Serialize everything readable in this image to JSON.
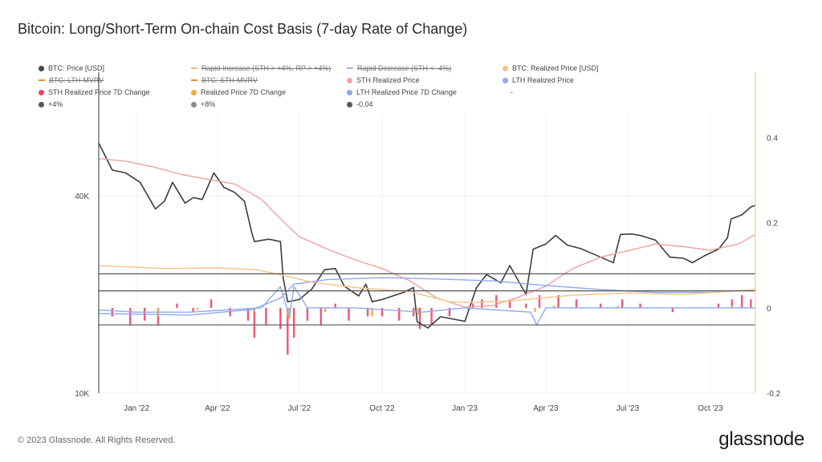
{
  "title": "Bitcoin: Long/Short-Term On-chain Cost Basis (7-day Rate of Change)",
  "footer": "© 2023 Glassnode. All Rights Reserved.",
  "brand": "glassnode",
  "legend": [
    {
      "label": "BTC: Price [USD]",
      "color": "#444444",
      "struck": false
    },
    {
      "label": "Rapid Increase (STH > +4%, RP > +4%)",
      "color": "#f2b38f",
      "struck": true
    },
    {
      "label": "Rapid Decrease (STH < -4%)",
      "color": "#9db8e6",
      "struck": true
    },
    {
      "label": "BTC: Realized Price [USD]",
      "color": "#f5c48a",
      "struck": false
    },
    {
      "label": "BTC: LTH-MVRV",
      "color": "#e88d2c",
      "struck": true
    },
    {
      "label": "BTC: STH-MVRV",
      "color": "#e88d2c",
      "struck": true
    },
    {
      "label": "STH Realized Price",
      "color": "#f2a0a0",
      "struck": false
    },
    {
      "label": "LTH Realized Price",
      "color": "#8fa9ef",
      "struck": false
    },
    {
      "label": "STH Realized Price 7D Change",
      "color": "#ee4466",
      "struck": false
    },
    {
      "label": "Realized Price 7D Change",
      "color": "#f5a742",
      "struck": false
    },
    {
      "label": "LTH Realized Price 7D Change",
      "color": "#8fa9ef",
      "struck": false
    },
    {
      "label": "-",
      "color": "",
      "struck": false
    },
    {
      "label": "+4%",
      "color": "#555555",
      "struck": false
    },
    {
      "label": "+8%",
      "color": "#888888",
      "struck": false
    },
    {
      "label": "-0.04",
      "color": "#555555",
      "struck": false
    }
  ],
  "chart_data": {
    "type": "line",
    "x_tick_labels": [
      "Jan '22",
      "Apr '22",
      "Jul '22",
      "Oct '22",
      "Jan '23",
      "Apr '23",
      "Jul '23",
      "Oct '23"
    ],
    "x_range": [
      "2021-11-20",
      "2023-11-20"
    ],
    "y_left": {
      "scale": "log",
      "range": [
        10000,
        70000
      ],
      "tick_labels": [
        "40K",
        "10K"
      ],
      "tick_values": [
        40000,
        10000
      ]
    },
    "y_right": {
      "scale": "linear",
      "range": [
        -0.2,
        0.45
      ],
      "tick_labels": [
        "0.4",
        "0.2",
        "0",
        "-0.2"
      ],
      "tick_values": [
        0.4,
        0.2,
        0,
        -0.2
      ]
    },
    "reference_lines": [
      {
        "name": "+8%",
        "value": 0.08,
        "color": "#555555"
      },
      {
        "name": "+4%",
        "value": 0.04,
        "color": "#555555"
      },
      {
        "name": "-0.04",
        "value": -0.04,
        "color": "#555555"
      }
    ],
    "series": [
      {
        "name": "BTC: Price [USD]",
        "axis": "left",
        "color": "#3d3d3d",
        "points": [
          [
            "2021-11-20",
            58000
          ],
          [
            "2021-12-05",
            48000
          ],
          [
            "2021-12-20",
            47000
          ],
          [
            "2022-01-05",
            44000
          ],
          [
            "2022-01-22",
            36500
          ],
          [
            "2022-02-01",
            38500
          ],
          [
            "2022-02-10",
            44000
          ],
          [
            "2022-02-24",
            38000
          ],
          [
            "2022-03-05",
            39500
          ],
          [
            "2022-03-15",
            39000
          ],
          [
            "2022-03-28",
            47000
          ],
          [
            "2022-04-08",
            42500
          ],
          [
            "2022-04-20",
            41000
          ],
          [
            "2022-05-01",
            38500
          ],
          [
            "2022-05-09",
            31000
          ],
          [
            "2022-05-12",
            29000
          ],
          [
            "2022-05-28",
            29500
          ],
          [
            "2022-06-10",
            29000
          ],
          [
            "2022-06-13",
            22500
          ],
          [
            "2022-06-18",
            19000
          ],
          [
            "2022-07-01",
            19300
          ],
          [
            "2022-07-15",
            20800
          ],
          [
            "2022-07-29",
            23800
          ],
          [
            "2022-08-10",
            24000
          ],
          [
            "2022-08-20",
            21200
          ],
          [
            "2022-09-05",
            19800
          ],
          [
            "2022-09-13",
            21500
          ],
          [
            "2022-09-20",
            19000
          ],
          [
            "2022-10-01",
            19300
          ],
          [
            "2022-10-25",
            20300
          ],
          [
            "2022-11-05",
            21000
          ],
          [
            "2022-11-09",
            16500
          ],
          [
            "2022-11-21",
            15800
          ],
          [
            "2022-12-05",
            17100
          ],
          [
            "2022-12-20",
            16800
          ],
          [
            "2023-01-01",
            16550
          ],
          [
            "2023-01-14",
            21000
          ],
          [
            "2023-01-25",
            23000
          ],
          [
            "2023-02-10",
            21700
          ],
          [
            "2023-02-20",
            24500
          ],
          [
            "2023-03-10",
            20000
          ],
          [
            "2023-03-18",
            27500
          ],
          [
            "2023-04-01",
            28500
          ],
          [
            "2023-04-12",
            30300
          ],
          [
            "2023-04-25",
            28300
          ],
          [
            "2023-05-10",
            27600
          ],
          [
            "2023-05-25",
            26500
          ],
          [
            "2023-06-15",
            25000
          ],
          [
            "2023-06-23",
            30500
          ],
          [
            "2023-07-05",
            30600
          ],
          [
            "2023-07-15",
            30300
          ],
          [
            "2023-08-01",
            29300
          ],
          [
            "2023-08-17",
            26000
          ],
          [
            "2023-09-01",
            25800
          ],
          [
            "2023-09-11",
            25000
          ],
          [
            "2023-09-25",
            26300
          ],
          [
            "2023-10-10",
            27500
          ],
          [
            "2023-10-20",
            29800
          ],
          [
            "2023-10-24",
            34000
          ],
          [
            "2023-11-05",
            35000
          ],
          [
            "2023-11-15",
            37000
          ],
          [
            "2023-11-20",
            37400
          ]
        ]
      },
      {
        "name": "STH Realized Price",
        "axis": "left",
        "color": "#f2a0a0",
        "points": [
          [
            "2021-11-20",
            52000
          ],
          [
            "2021-12-20",
            51000
          ],
          [
            "2022-01-20",
            49000
          ],
          [
            "2022-02-20",
            46500
          ],
          [
            "2022-03-20",
            45000
          ],
          [
            "2022-04-20",
            43500
          ],
          [
            "2022-05-20",
            39000
          ],
          [
            "2022-06-15",
            33000
          ],
          [
            "2022-07-01",
            30000
          ],
          [
            "2022-08-01",
            27500
          ],
          [
            "2022-09-01",
            25500
          ],
          [
            "2022-10-01",
            24000
          ],
          [
            "2022-11-01",
            22000
          ],
          [
            "2022-12-01",
            19500
          ],
          [
            "2023-01-01",
            18300
          ],
          [
            "2023-02-01",
            18500
          ],
          [
            "2023-03-01",
            19600
          ],
          [
            "2023-04-01",
            21200
          ],
          [
            "2023-05-01",
            24000
          ],
          [
            "2023-06-01",
            26000
          ],
          [
            "2023-07-01",
            27200
          ],
          [
            "2023-08-01",
            28500
          ],
          [
            "2023-09-01",
            28000
          ],
          [
            "2023-10-01",
            27300
          ],
          [
            "2023-11-01",
            28500
          ],
          [
            "2023-11-20",
            30500
          ]
        ]
      },
      {
        "name": "LTH Realized Price",
        "axis": "left",
        "color": "#8fa9ef",
        "points": [
          [
            "2021-11-20",
            17500
          ],
          [
            "2022-03-01",
            17300
          ],
          [
            "2022-05-10",
            18000
          ],
          [
            "2022-06-10",
            19500
          ],
          [
            "2022-06-25",
            21500
          ],
          [
            "2022-08-01",
            22200
          ],
          [
            "2022-10-01",
            22500
          ],
          [
            "2022-12-01",
            22300
          ],
          [
            "2023-02-01",
            22000
          ],
          [
            "2023-04-01",
            21300
          ],
          [
            "2023-06-01",
            20700
          ],
          [
            "2023-08-01",
            20300
          ],
          [
            "2023-10-01",
            20300
          ],
          [
            "2023-11-20",
            20700
          ]
        ]
      },
      {
        "name": "BTC: Realized Price [USD]",
        "axis": "left",
        "color": "#f5c48a",
        "points": [
          [
            "2021-11-20",
            24500
          ],
          [
            "2021-12-20",
            24300
          ],
          [
            "2022-02-01",
            24000
          ],
          [
            "2022-04-01",
            24100
          ],
          [
            "2022-05-15",
            23800
          ],
          [
            "2022-06-15",
            22800
          ],
          [
            "2022-07-15",
            21800
          ],
          [
            "2022-09-01",
            21000
          ],
          [
            "2022-11-01",
            20400
          ],
          [
            "2022-12-15",
            19000
          ],
          [
            "2023-01-15",
            18900
          ],
          [
            "2023-03-01",
            19200
          ],
          [
            "2023-05-01",
            19900
          ],
          [
            "2023-07-01",
            20200
          ],
          [
            "2023-09-01",
            20000
          ],
          [
            "2023-11-20",
            20700
          ]
        ]
      },
      {
        "name": "LTH Realized Price 7D Change",
        "axis": "right",
        "color": "#8fa9ef",
        "points": [
          [
            "2021-11-20",
            -0.005
          ],
          [
            "2022-01-01",
            -0.01
          ],
          [
            "2022-03-01",
            -0.01
          ],
          [
            "2022-05-20",
            0.0
          ],
          [
            "2022-06-10",
            0.05
          ],
          [
            "2022-06-20",
            -0.02
          ],
          [
            "2022-06-25",
            0.05
          ],
          [
            "2022-07-10",
            0.0
          ],
          [
            "2022-09-01",
            0.0
          ],
          [
            "2022-11-15",
            -0.01
          ],
          [
            "2023-01-01",
            0.0
          ],
          [
            "2023-03-15",
            -0.01
          ],
          [
            "2023-03-22",
            -0.04
          ],
          [
            "2023-04-01",
            0.0
          ],
          [
            "2023-07-01",
            0.0
          ],
          [
            "2023-11-20",
            0.0
          ]
        ]
      },
      {
        "name": "STH Realized Price 7D Change",
        "axis": "right",
        "color": "#ee4466",
        "style": "bars",
        "points": [
          [
            "2021-12-05",
            -0.02
          ],
          [
            "2021-12-25",
            -0.04
          ],
          [
            "2022-01-10",
            -0.03
          ],
          [
            "2022-01-25",
            -0.04
          ],
          [
            "2022-02-15",
            0.01
          ],
          [
            "2022-03-05",
            -0.01
          ],
          [
            "2022-03-25",
            0.02
          ],
          [
            "2022-04-15",
            -0.02
          ],
          [
            "2022-05-05",
            -0.03
          ],
          [
            "2022-05-12",
            -0.07
          ],
          [
            "2022-05-25",
            -0.04
          ],
          [
            "2022-06-10",
            -0.05
          ],
          [
            "2022-06-18",
            -0.11
          ],
          [
            "2022-06-25",
            -0.07
          ],
          [
            "2022-07-10",
            -0.03
          ],
          [
            "2022-07-25",
            -0.04
          ],
          [
            "2022-08-10",
            0.01
          ],
          [
            "2022-08-25",
            -0.03
          ],
          [
            "2022-09-15",
            -0.02
          ],
          [
            "2022-10-01",
            -0.02
          ],
          [
            "2022-10-20",
            -0.03
          ],
          [
            "2022-11-05",
            -0.02
          ],
          [
            "2022-11-12",
            -0.05
          ],
          [
            "2022-11-25",
            -0.04
          ],
          [
            "2022-12-15",
            -0.02
          ],
          [
            "2023-01-10",
            0.01
          ],
          [
            "2023-01-20",
            0.02
          ],
          [
            "2023-02-05",
            0.03
          ],
          [
            "2023-02-20",
            0.02
          ],
          [
            "2023-03-10",
            0.01
          ],
          [
            "2023-03-25",
            0.03
          ],
          [
            "2023-04-15",
            0.03
          ],
          [
            "2023-05-05",
            0.02
          ],
          [
            "2023-06-01",
            0.01
          ],
          [
            "2023-06-25",
            0.02
          ],
          [
            "2023-07-15",
            0.01
          ],
          [
            "2023-08-10",
            0.0
          ],
          [
            "2023-08-20",
            -0.01
          ],
          [
            "2023-09-15",
            0.0
          ],
          [
            "2023-10-10",
            0.01
          ],
          [
            "2023-10-25",
            0.02
          ],
          [
            "2023-11-05",
            0.03
          ],
          [
            "2023-11-15",
            0.02
          ]
        ]
      },
      {
        "name": "Realized Price 7D Change",
        "axis": "right",
        "color": "#f5a742",
        "style": "bars",
        "points": [
          [
            "2022-01-25",
            -0.02
          ],
          [
            "2022-03-10",
            -0.005
          ],
          [
            "2022-05-12",
            -0.01
          ],
          [
            "2022-06-18",
            -0.02
          ],
          [
            "2022-06-20",
            -0.025
          ],
          [
            "2022-07-30",
            -0.01
          ],
          [
            "2022-09-20",
            -0.02
          ],
          [
            "2022-11-10",
            -0.015
          ],
          [
            "2023-01-05",
            -0.005
          ],
          [
            "2023-03-20",
            -0.01
          ],
          [
            "2023-04-10",
            0.005
          ],
          [
            "2023-06-20",
            0.005
          ],
          [
            "2023-10-25",
            0.005
          ]
        ]
      }
    ]
  }
}
